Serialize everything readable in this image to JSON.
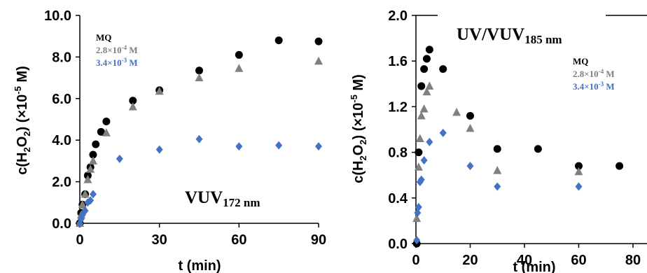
{
  "colors": {
    "mq": "#000000",
    "mid": "#808080",
    "high": "#4472C4"
  },
  "chart_data": [
    {
      "type": "scatter",
      "title": "VUV",
      "title_sub": "172 nm",
      "xlabel": "t (min)",
      "ylabel": "c(H",
      "ylabel_sub1": "2",
      "ylabel_mid": "O",
      "ylabel_sub2": "2",
      "ylabel_end": ") (×10",
      "ylabel_sup": "-5",
      "ylabel_unit": " M)",
      "xlim": [
        0,
        90
      ],
      "ylim": [
        0,
        10
      ],
      "xticks": [
        0,
        30,
        60,
        90
      ],
      "xtick_labels": [
        "0",
        "30",
        "60",
        "90"
      ],
      "yticks": [
        0,
        2,
        4,
        6,
        8,
        10
      ],
      "ytick_labels": [
        "0.0",
        "2.0",
        "4.0",
        "6.0",
        "8.0",
        "10.0"
      ],
      "legend": [
        "MQ",
        "2.8×10",
        "3.4×10"
      ],
      "legend_sup": [
        "",
        "-4",
        "-3"
      ],
      "legend_unit": [
        "",
        " M",
        " M"
      ],
      "series": [
        {
          "name": "MQ",
          "marker": "circle",
          "color_key": "mq",
          "x": [
            0,
            0.5,
            1,
            2,
            3,
            4,
            5,
            6,
            8,
            10,
            20,
            30,
            45,
            60,
            75,
            90
          ],
          "y": [
            0,
            0.5,
            0.9,
            1.4,
            2.3,
            2.7,
            3.3,
            3.8,
            4.4,
            4.9,
            5.9,
            6.4,
            7.35,
            8.1,
            8.8,
            8.75
          ]
        },
        {
          "name": "2.8×10-4 M",
          "marker": "triangle",
          "color_key": "mid",
          "x": [
            0,
            0.5,
            1,
            2,
            3,
            4,
            5,
            10,
            20,
            30,
            45,
            60,
            90
          ],
          "y": [
            0,
            0.4,
            0.9,
            1.4,
            2.1,
            2.6,
            3.0,
            4.35,
            5.6,
            6.35,
            7.0,
            7.45,
            7.8
          ]
        },
        {
          "name": "3.4×10-3 M",
          "marker": "diamond",
          "color_key": "high",
          "x": [
            0,
            0.5,
            1,
            2,
            3,
            4,
            5,
            15,
            30,
            45,
            60,
            75,
            90
          ],
          "y": [
            0,
            0.2,
            0.4,
            0.6,
            1.0,
            1.1,
            1.4,
            3.1,
            3.55,
            4.05,
            3.7,
            3.75,
            3.7
          ]
        }
      ]
    },
    {
      "type": "scatter",
      "title": "UV/VUV",
      "title_sub": "185 nm",
      "xlabel": "t (min)",
      "ylabel": "c(H",
      "ylabel_sub1": "2",
      "ylabel_mid": "O",
      "ylabel_sub2": "2",
      "ylabel_end": ") (×10",
      "ylabel_sup": "-5",
      "ylabel_unit": " M)",
      "xlim": [
        0,
        90
      ],
      "ylim": [
        0,
        2.0
      ],
      "xticks": [
        0,
        20,
        40,
        60,
        80
      ],
      "xtick_labels": [
        "0",
        "20",
        "40",
        "60",
        "80"
      ],
      "yticks": [
        0,
        0.4,
        0.8,
        1.2,
        1.6,
        2.0
      ],
      "ytick_labels": [
        "0.0",
        "0.4",
        "0.8",
        "1.2",
        "1.6",
        "2.0"
      ],
      "legend": [
        "MQ",
        "2.8×10",
        "3.4×10"
      ],
      "legend_sup": [
        "",
        "-4",
        "-3"
      ],
      "legend_unit": [
        "",
        " M",
        " M"
      ],
      "series": [
        {
          "name": "MQ",
          "marker": "circle",
          "color_key": "mq",
          "x": [
            0.3,
            1,
            2,
            3,
            4,
            5,
            10,
            20,
            30,
            45,
            60,
            75
          ],
          "y": [
            0,
            0.8,
            1.38,
            1.53,
            1.62,
            1.7,
            1.53,
            1.12,
            0.83,
            0.83,
            0.68,
            0.68
          ]
        },
        {
          "name": "2.8×10-4 M",
          "marker": "triangle",
          "color_key": "mid",
          "x": [
            0.3,
            1,
            1.5,
            2,
            3,
            4,
            5,
            15,
            20,
            30,
            60
          ],
          "y": [
            0.22,
            0.67,
            0.92,
            1.12,
            1.18,
            1.33,
            1.38,
            1.15,
            1.01,
            0.64,
            0.63
          ]
        },
        {
          "name": "3.4×10-3 M",
          "marker": "diamond",
          "color_key": "high",
          "x": [
            0.3,
            0.6,
            1,
            1.5,
            2,
            3,
            5,
            10,
            20,
            30,
            60
          ],
          "y": [
            0.03,
            0.27,
            0.32,
            0.54,
            0.56,
            0.73,
            0.89,
            0.97,
            0.68,
            0.5,
            0.5
          ]
        }
      ]
    }
  ]
}
